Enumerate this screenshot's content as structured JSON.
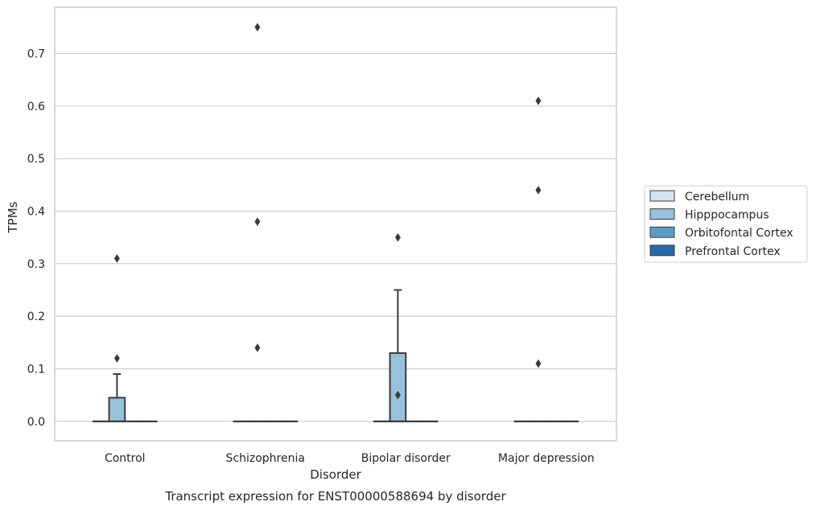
{
  "chart_data": {
    "type": "box",
    "title": "",
    "caption": "Transcript expression for ENST00000588694 by disorder",
    "xlabel": "Disorder",
    "ylabel": "TPMs",
    "ylim": [
      -0.037,
      0.788
    ],
    "yticks": [
      "0.0",
      "0.1",
      "0.2",
      "0.3",
      "0.4",
      "0.5",
      "0.6",
      "0.7"
    ],
    "ytick_values": [
      0,
      0.1,
      0.2,
      0.3,
      0.4,
      0.5,
      0.6,
      0.7
    ],
    "grid": true,
    "legend_placement": "right",
    "categories": [
      "Control",
      "Schizophrenia",
      "Bipolar disorder",
      "Major depression"
    ],
    "series": [
      {
        "name": "Cerebellum",
        "color": "#d1e2f2",
        "boxes": [
          {
            "q1": 0,
            "median": 0,
            "q3": 0,
            "whisker_low": 0,
            "whisker_high": 0,
            "outliers": []
          },
          {
            "q1": 0,
            "median": 0,
            "q3": 0,
            "whisker_low": 0,
            "whisker_high": 0,
            "outliers": []
          },
          {
            "q1": 0,
            "median": 0,
            "q3": 0,
            "whisker_low": 0,
            "whisker_high": 0,
            "outliers": []
          },
          {
            "q1": 0,
            "median": 0,
            "q3": 0,
            "whisker_low": 0,
            "whisker_high": 0,
            "outliers": []
          }
        ]
      },
      {
        "name": "Hipppocampus",
        "color": "#9ac1dc",
        "boxes": [
          {
            "q1": 0,
            "median": 0,
            "q3": 0.045,
            "whisker_low": 0,
            "whisker_high": 0.09,
            "outliers": [
              0.12,
              0.31
            ]
          },
          {
            "q1": 0,
            "median": 0,
            "q3": 0,
            "whisker_low": 0,
            "whisker_high": 0,
            "outliers": [
              0.14,
              0.38,
              0.75
            ]
          },
          {
            "q1": 0,
            "median": 0,
            "q3": 0.13,
            "whisker_low": 0,
            "whisker_high": 0.25,
            "outliers": [
              0.05,
              0.35
            ]
          },
          {
            "q1": 0,
            "median": 0,
            "q3": 0,
            "whisker_low": 0,
            "whisker_high": 0,
            "outliers": [
              0.11,
              0.44,
              0.61
            ]
          }
        ]
      },
      {
        "name": "Orbitofontal Cortex",
        "color": "#5a9bc8",
        "boxes": [
          {
            "q1": 0,
            "median": 0,
            "q3": 0,
            "whisker_low": 0,
            "whisker_high": 0,
            "outliers": []
          },
          {
            "q1": 0,
            "median": 0,
            "q3": 0,
            "whisker_low": 0,
            "whisker_high": 0,
            "outliers": []
          },
          {
            "q1": 0,
            "median": 0,
            "q3": 0,
            "whisker_low": 0,
            "whisker_high": 0,
            "outliers": []
          },
          {
            "q1": 0,
            "median": 0,
            "q3": 0,
            "whisker_low": 0,
            "whisker_high": 0,
            "outliers": []
          }
        ]
      },
      {
        "name": "Prefrontal Cortex",
        "color": "#2a6ba6",
        "boxes": [
          {
            "q1": 0,
            "median": 0,
            "q3": 0,
            "whisker_low": 0,
            "whisker_high": 0,
            "outliers": []
          },
          {
            "q1": 0,
            "median": 0,
            "q3": 0,
            "whisker_low": 0,
            "whisker_high": 0,
            "outliers": []
          },
          {
            "q1": 0,
            "median": 0,
            "q3": 0,
            "whisker_low": 0,
            "whisker_high": 0,
            "outliers": []
          },
          {
            "q1": 0,
            "median": 0,
            "q3": 0,
            "whisker_low": 0,
            "whisker_high": 0,
            "outliers": []
          }
        ]
      }
    ],
    "colors": {
      "box_edge": "#3b3b3b",
      "grid": "#cccccc",
      "frame": "#cccccc",
      "text": "#262626"
    }
  }
}
